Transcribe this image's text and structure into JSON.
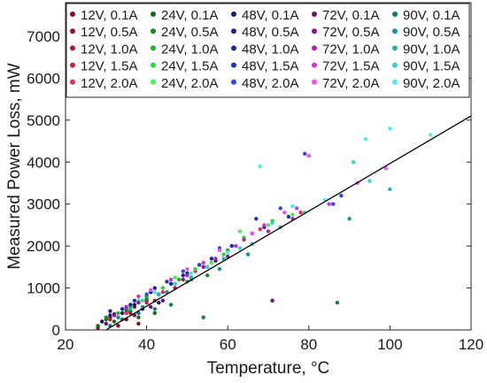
{
  "chart_data": {
    "type": "scatter",
    "xlabel": "Temperature, °C",
    "ylabel": "Measured Power Loss, mW",
    "xlim": [
      20,
      120
    ],
    "ylim": [
      0,
      7800
    ],
    "x_ticks": [
      20,
      40,
      60,
      80,
      100,
      120
    ],
    "y_ticks": [
      0,
      1000,
      2000,
      3000,
      4000,
      5000,
      6000,
      7000
    ],
    "grid": false,
    "legend_position": "top, inside plot, 5 columns",
    "fit_line": {
      "color": "#000000",
      "points": [
        [
          30,
          0
        ],
        [
          120,
          5100
        ]
      ]
    },
    "series": [
      {
        "name": "12V, 0.1A",
        "color": "#8b0a1e",
        "points": [
          [
            28,
            50
          ],
          [
            30,
            150
          ],
          [
            31,
            300
          ],
          [
            33,
            100
          ],
          [
            35,
            250
          ],
          [
            38,
            150
          ]
        ]
      },
      {
        "name": "12V, 0.5A",
        "color": "#9b1030",
        "points": [
          [
            29,
            200
          ],
          [
            32,
            380
          ],
          [
            35,
            450
          ],
          [
            37,
            550
          ],
          [
            40,
            700
          ],
          [
            43,
            850
          ]
        ]
      },
      {
        "name": "12V, 1.0A",
        "color": "#c0102a",
        "points": [
          [
            31,
            250
          ],
          [
            36,
            400
          ],
          [
            42,
            700
          ],
          [
            47,
            1000
          ],
          [
            51,
            1250
          ],
          [
            56,
            1600
          ]
        ]
      },
      {
        "name": "12V, 1.5A",
        "color": "#d81c3c",
        "points": [
          [
            33,
            300
          ],
          [
            40,
            650
          ],
          [
            47,
            1100
          ],
          [
            55,
            1500
          ],
          [
            61,
            2000
          ],
          [
            65,
            1800
          ]
        ]
      },
      {
        "name": "12V, 2.0A",
        "color": "#ee2850",
        "points": [
          [
            35,
            400
          ],
          [
            44,
            900
          ],
          [
            52,
            1400
          ],
          [
            60,
            1900
          ],
          [
            68,
            2400
          ],
          [
            78,
            2800
          ]
        ]
      },
      {
        "name": "24V, 0.1A",
        "color": "#0a6e14",
        "points": [
          [
            28,
            100
          ],
          [
            30,
            250
          ],
          [
            32,
            200
          ],
          [
            36,
            450
          ],
          [
            38,
            300
          ],
          [
            42,
            400
          ]
        ]
      },
      {
        "name": "24V, 0.5A",
        "color": "#148c1c",
        "points": [
          [
            30,
            300
          ],
          [
            35,
            500
          ],
          [
            40,
            750
          ],
          [
            45,
            900
          ],
          [
            50,
            1150
          ],
          [
            55,
            1300
          ]
        ]
      },
      {
        "name": "24V, 1.0A",
        "color": "#1cb424",
        "points": [
          [
            33,
            400
          ],
          [
            40,
            800
          ],
          [
            48,
            1200
          ],
          [
            54,
            1500
          ],
          [
            60,
            1900
          ],
          [
            66,
            2300
          ]
        ]
      },
      {
        "name": "24V, 1.5A",
        "color": "#2ed23a",
        "points": [
          [
            36,
            550
          ],
          [
            44,
            1000
          ],
          [
            52,
            1450
          ],
          [
            59,
            1800
          ],
          [
            64,
            2200
          ],
          [
            71,
            2600
          ]
        ]
      },
      {
        "name": "24V, 2.0A",
        "color": "#48f050",
        "points": [
          [
            38,
            700
          ],
          [
            47,
            1250
          ],
          [
            56,
            1600
          ],
          [
            63,
            2350
          ],
          [
            70,
            2500
          ],
          [
            76,
            2750
          ]
        ]
      },
      {
        "name": "48V, 0.1A",
        "color": "#141e6e",
        "points": [
          [
            29,
            200
          ],
          [
            31,
            350
          ],
          [
            34,
            400
          ],
          [
            37,
            600
          ],
          [
            39,
            500
          ],
          [
            43,
            650
          ]
        ]
      },
      {
        "name": "48V, 0.5A",
        "color": "#14288c",
        "points": [
          [
            31,
            450
          ],
          [
            36,
            600
          ],
          [
            41,
            900
          ],
          [
            46,
            1100
          ],
          [
            50,
            1350
          ],
          [
            57,
            1650
          ]
        ]
      },
      {
        "name": "48V, 1.0A",
        "color": "#1428a6",
        "points": [
          [
            34,
            500
          ],
          [
            42,
            1000
          ],
          [
            49,
            1300
          ],
          [
            56,
            1700
          ],
          [
            62,
            2000
          ],
          [
            69,
            2450
          ]
        ]
      },
      {
        "name": "48V, 1.5A",
        "color": "#1e32c0",
        "points": [
          [
            37,
            700
          ],
          [
            45,
            1150
          ],
          [
            53,
            1550
          ],
          [
            61,
            2000
          ],
          [
            67,
            2650
          ],
          [
            75,
            2700
          ]
        ]
      },
      {
        "name": "48V, 2.0A",
        "color": "#3246dc",
        "points": [
          [
            40,
            850
          ],
          [
            49,
            1400
          ],
          [
            58,
            1950
          ],
          [
            66,
            2300
          ],
          [
            73,
            2900
          ],
          [
            79,
            4200
          ],
          [
            86,
            3000
          ],
          [
            88,
            3200
          ]
        ]
      },
      {
        "name": "72V, 0.1A",
        "color": "#6e1478",
        "points": [
          [
            30,
            150
          ],
          [
            33,
            300
          ],
          [
            37,
            350
          ],
          [
            41,
            550
          ],
          [
            44,
            700
          ],
          [
            71,
            700
          ]
        ]
      },
      {
        "name": "72V, 0.5A",
        "color": "#8c1496",
        "points": [
          [
            32,
            350
          ],
          [
            38,
            650
          ],
          [
            43,
            850
          ],
          [
            49,
            1200
          ],
          [
            54,
            1500
          ],
          [
            60,
            1750
          ]
        ]
      },
      {
        "name": "72V, 1.0A",
        "color": "#b41eb4",
        "points": [
          [
            35,
            550
          ],
          [
            42,
            900
          ],
          [
            50,
            1300
          ],
          [
            57,
            1700
          ],
          [
            64,
            2150
          ],
          [
            70,
            2350
          ],
          [
            76,
            2650
          ]
        ]
      },
      {
        "name": "72V, 1.5A",
        "color": "#d232d2",
        "points": [
          [
            38,
            800
          ],
          [
            46,
            1200
          ],
          [
            54,
            1600
          ],
          [
            62,
            2000
          ],
          [
            69,
            2500
          ],
          [
            77,
            2900
          ],
          [
            85,
            3000
          ]
        ]
      },
      {
        "name": "72V, 2.0A",
        "color": "#f050f0",
        "points": [
          [
            41,
            950
          ],
          [
            50,
            1450
          ],
          [
            58,
            1900
          ],
          [
            66,
            2300
          ],
          [
            74,
            2800
          ],
          [
            80,
            4150
          ],
          [
            92,
            3500
          ],
          [
            99,
            3850
          ]
        ]
      },
      {
        "name": "90V, 0.1A",
        "color": "#0a7878",
        "points": [
          [
            31,
            100
          ],
          [
            34,
            250
          ],
          [
            38,
            400
          ],
          [
            42,
            500
          ],
          [
            46,
            600
          ],
          [
            54,
            300
          ],
          [
            87,
            650
          ]
        ]
      },
      {
        "name": "90V, 0.5A",
        "color": "#149696",
        "points": [
          [
            33,
            300
          ],
          [
            39,
            550
          ],
          [
            45,
            900
          ],
          [
            51,
            1200
          ],
          [
            58,
            1450
          ],
          [
            65,
            1800
          ],
          [
            90,
            2650
          ]
        ]
      },
      {
        "name": "90V, 1.0A",
        "color": "#1eb4b4",
        "points": [
          [
            36,
            500
          ],
          [
            43,
            850
          ],
          [
            51,
            1250
          ],
          [
            59,
            1700
          ],
          [
            66,
            2050
          ],
          [
            73,
            2450
          ],
          [
            100,
            3350
          ]
        ]
      },
      {
        "name": "90V, 1.5A",
        "color": "#2ed2d2",
        "points": [
          [
            39,
            700
          ],
          [
            47,
            1100
          ],
          [
            55,
            1500
          ],
          [
            63,
            1950
          ],
          [
            71,
            2550
          ],
          [
            79,
            2800
          ],
          [
            91,
            4000
          ],
          [
            95,
            3550
          ]
        ]
      },
      {
        "name": "90V, 2.0A",
        "color": "#46f0f0",
        "points": [
          [
            42,
            900
          ],
          [
            51,
            1350
          ],
          [
            60,
            1850
          ],
          [
            68,
            3900
          ],
          [
            76,
            2950
          ],
          [
            84,
            3100
          ],
          [
            94,
            4550
          ],
          [
            100,
            4800
          ],
          [
            110,
            4650
          ]
        ]
      }
    ]
  }
}
